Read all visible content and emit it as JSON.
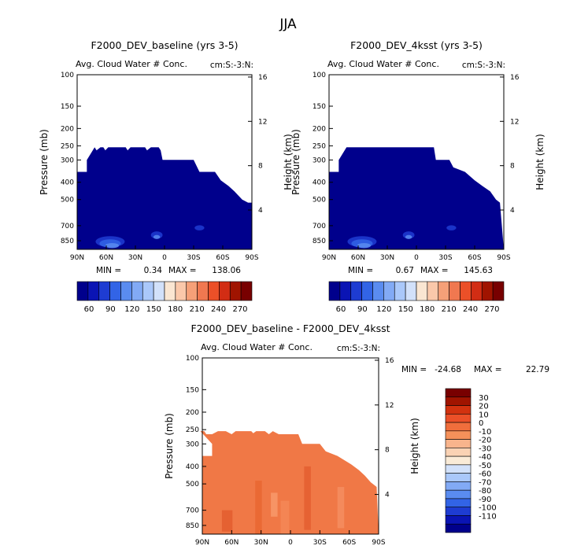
{
  "page_title": "JJA",
  "chart_data": [
    {
      "type": "contour",
      "title": "F2000_DEV_baseline (yrs 3-5)",
      "subtitle": "Avg. Cloud Water # Conc.",
      "units_label": "cm:S:-3:N:",
      "ylabel": "Pressure (mb)",
      "y2label": "Height (km)",
      "x_ticks": [
        "90N",
        "60N",
        "30N",
        "0",
        "30S",
        "60S",
        "90S"
      ],
      "x_values": [
        90,
        60,
        30,
        0,
        -30,
        -60,
        -90
      ],
      "y_ticks": [
        100,
        150,
        200,
        250,
        300,
        400,
        500,
        700,
        850
      ],
      "y2_ticks": [
        4,
        8,
        12,
        16
      ],
      "min_label": "MIN =",
      "min": "0.34",
      "max_label": "MAX =",
      "max": "138.06",
      "colorbar": {
        "orientation": "horizontal",
        "labels": [
          "60",
          "90",
          "120",
          "150",
          "180",
          "210",
          "240",
          "270"
        ],
        "colors": [
          "#00008c",
          "#0a14b4",
          "#1e3cd2",
          "#3264e6",
          "#5a8cf0",
          "#82aaf5",
          "#aac8fa",
          "#d2e1fa",
          "#fae6d2",
          "#fac8aa",
          "#f5a078",
          "#f07850",
          "#eb5028",
          "#d22d14",
          "#a01400",
          "#780000"
        ]
      }
    },
    {
      "type": "contour",
      "title": "F2000_DEV_4ksst (yrs 3-5)",
      "subtitle": "Avg. Cloud Water # Conc.",
      "units_label": "cm:S:-3:N:",
      "ylabel": "Pressure (mb)",
      "y2label": "Height (km)",
      "x_ticks": [
        "90N",
        "60N",
        "30N",
        "0",
        "30S",
        "60S",
        "90S"
      ],
      "x_values": [
        90,
        60,
        30,
        0,
        -30,
        -60,
        -90
      ],
      "y_ticks": [
        100,
        150,
        200,
        250,
        300,
        400,
        500,
        700,
        850
      ],
      "y2_ticks": [
        4,
        8,
        12,
        16
      ],
      "min_label": "MIN =",
      "min": "0.67",
      "max_label": "MAX =",
      "max": "145.63",
      "colorbar": {
        "orientation": "horizontal",
        "labels": [
          "60",
          "90",
          "120",
          "150",
          "180",
          "210",
          "240",
          "270"
        ],
        "colors": [
          "#00008c",
          "#0a14b4",
          "#1e3cd2",
          "#3264e6",
          "#5a8cf0",
          "#82aaf5",
          "#aac8fa",
          "#d2e1fa",
          "#fae6d2",
          "#fac8aa",
          "#f5a078",
          "#f07850",
          "#eb5028",
          "#d22d14",
          "#a01400",
          "#780000"
        ]
      }
    },
    {
      "type": "contour",
      "title": "F2000_DEV_baseline - F2000_DEV_4ksst",
      "subtitle": "Avg. Cloud Water # Conc.",
      "units_label": "cm:S:-3:N:",
      "ylabel": "Pressure (mb)",
      "y2label": "Height (km)",
      "x_ticks": [
        "90N",
        "60N",
        "30N",
        "0",
        "30S",
        "60S",
        "90S"
      ],
      "x_values": [
        90,
        60,
        30,
        0,
        -30,
        -60,
        -90
      ],
      "y_ticks": [
        100,
        150,
        200,
        250,
        300,
        400,
        500,
        700,
        850
      ],
      "y2_ticks": [
        4,
        8,
        12,
        16
      ],
      "min_label": "MIN =",
      "min": "-24.68",
      "max_label": "MAX =",
      "max": "22.79",
      "colorbar": {
        "orientation": "vertical",
        "labels": [
          "30",
          "20",
          "10",
          "0",
          "-10",
          "-20",
          "-30",
          "-40",
          "-50",
          "-60",
          "-70",
          "-80",
          "-90",
          "-100",
          "-110"
        ],
        "colors": [
          "#780000",
          "#a01400",
          "#d2320f",
          "#eb5028",
          "#f06e3c",
          "#f5915a",
          "#f8b48c",
          "#fad2b4",
          "#faebd7",
          "#d2e1fa",
          "#aac8fa",
          "#82aaf5",
          "#5a8cf0",
          "#3264e6",
          "#1e3cd2",
          "#0a14b4",
          "#00008c"
        ]
      }
    }
  ]
}
